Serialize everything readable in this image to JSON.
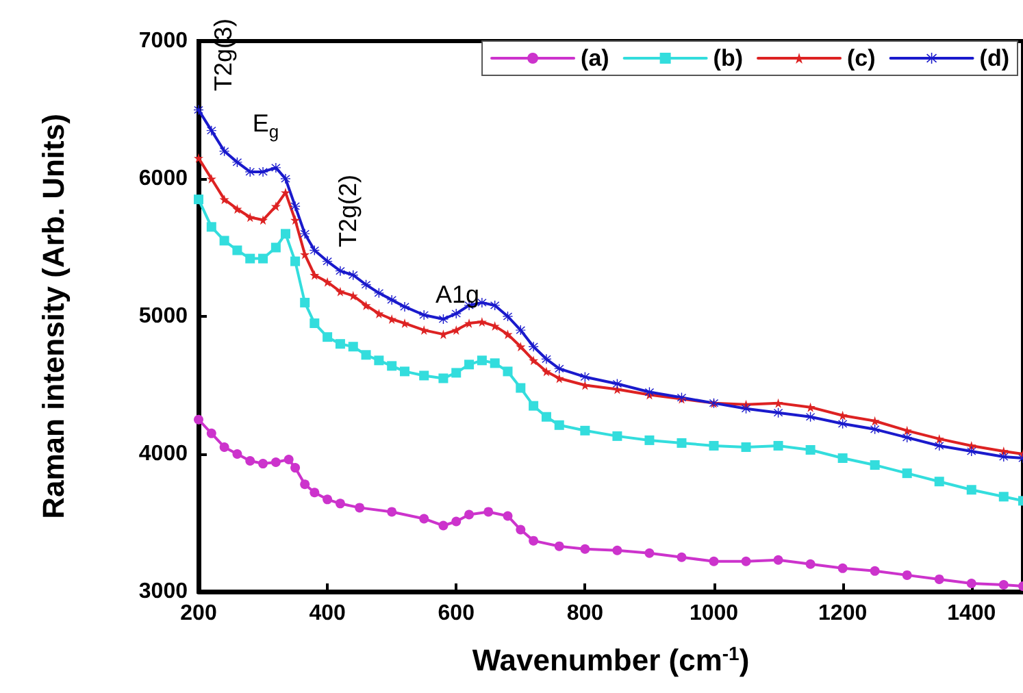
{
  "chart_data": {
    "type": "line",
    "xlabel": "Wavenumber (cm$^{-1}$)",
    "ylabel": "Raman intensity (Arb. Units)",
    "x": [
      200,
      220,
      240,
      260,
      280,
      300,
      320,
      335,
      350,
      365,
      380,
      400,
      420,
      440,
      460,
      480,
      500,
      520,
      550,
      580,
      600,
      620,
      640,
      660,
      680,
      700,
      720,
      740,
      760,
      800,
      850,
      900,
      950,
      1000,
      1050,
      1100,
      1150,
      1200,
      1250,
      1300,
      1350,
      1400,
      1450,
      1480
    ],
    "series": [
      {
        "name": "(a)",
        "color": "#cc33cc",
        "marker": "circle",
        "x": [
          200,
          220,
          240,
          260,
          280,
          300,
          320,
          340,
          350,
          365,
          380,
          400,
          420,
          450,
          500,
          550,
          580,
          600,
          620,
          650,
          680,
          700,
          720,
          760,
          800,
          850,
          900,
          950,
          1000,
          1050,
          1100,
          1150,
          1200,
          1250,
          1300,
          1350,
          1400,
          1450,
          1480
        ],
        "values": [
          4250,
          4150,
          4050,
          4000,
          3950,
          3930,
          3940,
          3960,
          3900,
          3780,
          3720,
          3670,
          3640,
          3610,
          3580,
          3530,
          3480,
          3510,
          3560,
          3580,
          3550,
          3450,
          3370,
          3330,
          3310,
          3300,
          3280,
          3250,
          3220,
          3220,
          3230,
          3200,
          3170,
          3150,
          3120,
          3090,
          3060,
          3050,
          3040
        ]
      },
      {
        "name": "(b)",
        "color": "#33dddd",
        "marker": "square",
        "values": [
          5850,
          5650,
          5550,
          5480,
          5420,
          5420,
          5500,
          5600,
          5400,
          5100,
          4950,
          4850,
          4800,
          4780,
          4720,
          4680,
          4640,
          4600,
          4570,
          4550,
          4590,
          4650,
          4680,
          4660,
          4600,
          4480,
          4350,
          4270,
          4210,
          4170,
          4130,
          4100,
          4080,
          4060,
          4050,
          4060,
          4030,
          3970,
          3920,
          3860,
          3800,
          3740,
          3690,
          3660
        ]
      },
      {
        "name": "(c)",
        "color": "#dd2222",
        "marker": "star",
        "values": [
          6150,
          6000,
          5850,
          5780,
          5720,
          5700,
          5800,
          5900,
          5700,
          5450,
          5300,
          5250,
          5180,
          5150,
          5080,
          5020,
          4980,
          4950,
          4900,
          4870,
          4900,
          4950,
          4960,
          4930,
          4870,
          4780,
          4680,
          4600,
          4550,
          4500,
          4470,
          4430,
          4400,
          4370,
          4360,
          4370,
          4340,
          4280,
          4240,
          4170,
          4110,
          4060,
          4020,
          4000
        ]
      },
      {
        "name": "(d)",
        "color": "#1a1acc",
        "marker": "cross",
        "values": [
          6500,
          6350,
          6200,
          6120,
          6050,
          6050,
          6080,
          6000,
          5800,
          5600,
          5480,
          5400,
          5330,
          5300,
          5230,
          5170,
          5120,
          5070,
          5010,
          4980,
          5020,
          5080,
          5100,
          5080,
          5000,
          4900,
          4780,
          4690,
          4620,
          4560,
          4510,
          4450,
          4410,
          4370,
          4330,
          4300,
          4270,
          4220,
          4180,
          4120,
          4060,
          4020,
          3980,
          3970
        ]
      }
    ],
    "xlim": [
      200,
      1480
    ],
    "xticks": [
      200,
      400,
      600,
      800,
      1000,
      1200,
      1400
    ],
    "ylim": [
      3000,
      7000
    ],
    "yticks": [
      3000,
      4000,
      5000,
      6000,
      7000
    ],
    "annotations": [
      "T2g(3)",
      "E$_{g}$",
      "T2g(2)",
      "A1g"
    ],
    "grid": false,
    "legend": "top right",
    "line_style": "solid"
  }
}
